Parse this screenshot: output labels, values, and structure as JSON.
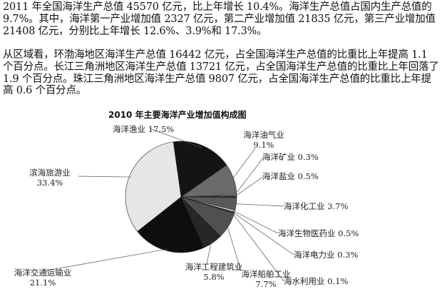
{
  "paragraphs": [
    "2011 年全国海洋生产总值 45570 亿元，比上年增长 10.4%。海洋生产总值占国内生产总值的 9.7%。其中，海洋第一产业增加值 2327 亿元，第二产业增加值 21835 亿元，第三产业增加值 21408 亿元，分别比上年增长 12.6%、3.9%和 17.3%。",
    "从区域看，环渤海地区海洋生产总值 16442 亿元，占全国海洋生产总值的比重比上年提高 1.1 个百分点。长江三角洲地区海洋生产总值 13721 亿元，占全国海洋生产总值的比重比上年回落了 1.9 个百分点。珠江三角洲地区海洋生产总值 9807 亿元，占全国海洋生产总值的比重比上年提高 0.6 个百分点。"
  ],
  "chart_data": {
    "type": "pie",
    "title": "2010 年主要海洋产业增加值构成图",
    "slices": [
      {
        "name": "海洋渔业",
        "value": 17.5,
        "label": "17.5%",
        "color": "#141414"
      },
      {
        "name": "海洋油气业",
        "value": 9.1,
        "label": "9.1%",
        "color": "#6a6a6a"
      },
      {
        "name": "海洋矿业",
        "value": 0.3,
        "label": "0.3%",
        "color": "#cccccc"
      },
      {
        "name": "海洋盐业",
        "value": 0.5,
        "label": "0.5%",
        "color": "#2a2a2a"
      },
      {
        "name": "海洋化工业",
        "value": 3.7,
        "label": "3.7%",
        "color": "#5a5a5a"
      },
      {
        "name": "海洋生物医药业",
        "value": 0.5,
        "label": "0.5%",
        "color": "#f0f0f0"
      },
      {
        "name": "海洋电力业",
        "value": 0.3,
        "label": "0.3%",
        "color": "#333333"
      },
      {
        "name": "海水利用业",
        "value": 0.1,
        "label": "0.1%",
        "color": "#999999"
      },
      {
        "name": "海洋船舶工业",
        "value": 7.7,
        "label": "7.7%",
        "color": "#505050"
      },
      {
        "name": "海洋工程建筑业",
        "value": 5.8,
        "label": "5.8%",
        "color": "#262626"
      },
      {
        "name": "海洋交通运输业",
        "value": 21.1,
        "label": "21.1%",
        "color": "#0e0e0e"
      },
      {
        "name": "滨海旅游业",
        "value": 33.4,
        "label": "33.4%",
        "color": "#e6e6e6"
      }
    ]
  }
}
